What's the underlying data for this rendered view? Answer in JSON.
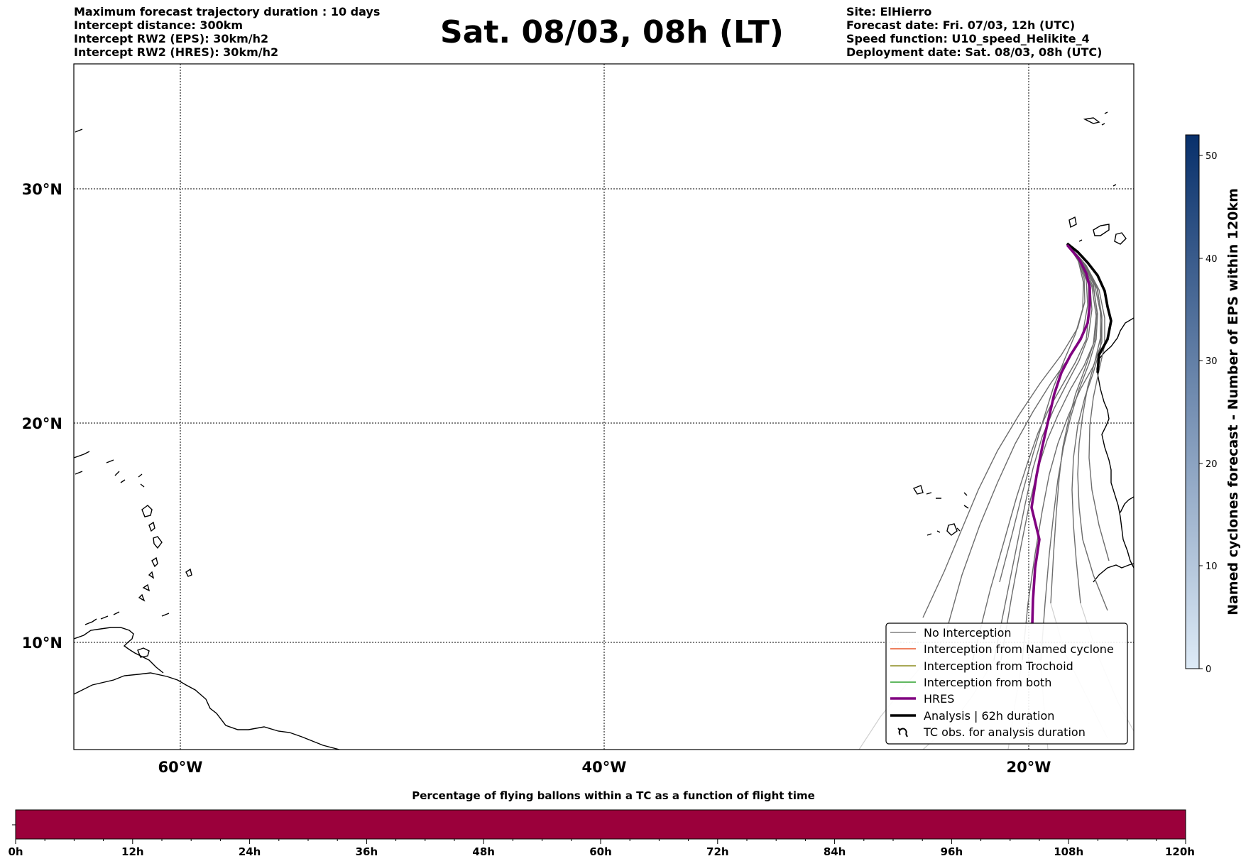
{
  "header": {
    "title": "Sat. 08/03, 08h (LT)",
    "left_lines": [
      "Maximum forecast trajectory duration : 10 days",
      "Intercept distance: 300km",
      "Intercept RW2 (EPS):  30km/h2",
      "Intercept RW2 (HRES): 30km/h2"
    ],
    "right_lines": [
      "Site: ElHierro",
      "Forecast date: Fri. 07/03, 12h (UTC)",
      "Speed function: U10_speed_Helikite_4",
      "Deployment date: Sat. 08/03, 08h (UTC)"
    ]
  },
  "map": {
    "lat_ticks": [
      "30°N",
      "20°N",
      "10°N"
    ],
    "lon_ticks": [
      "60°W",
      "40°W",
      "20°W"
    ],
    "gridlines": true,
    "legend": {
      "placement": "lower-right",
      "entries": [
        {
          "label": "No Interception",
          "color": "#808080"
        },
        {
          "label": "Interception from Named cyclone",
          "color": "#e8562a"
        },
        {
          "label": "Interception from Trochoid",
          "color": "#8b8b1e"
        },
        {
          "label": "Interception from both",
          "color": "#2ca02c"
        },
        {
          "label": "HRES",
          "color": "#800080"
        },
        {
          "label": "Analysis | 62h duration",
          "color": "#000000"
        },
        {
          "label": "TC obs. for analysis duration",
          "color": "#000000",
          "icon": "cyclone-icon"
        }
      ]
    }
  },
  "colorbar": {
    "label": "Named cyclones forecast - Number of EPS within 120km",
    "ticks": [
      "0",
      "10",
      "20",
      "30",
      "40",
      "50"
    ],
    "colors": [
      "#deebf7",
      "#08306b"
    ]
  },
  "timebar": {
    "title": "Percentage of flying ballons within a TC as a function of flight time",
    "ticks": [
      "0h",
      "12h",
      "24h",
      "36h",
      "48h",
      "60h",
      "72h",
      "84h",
      "96h",
      "108h",
      "120h"
    ],
    "fill_color": "#9b003b"
  }
}
